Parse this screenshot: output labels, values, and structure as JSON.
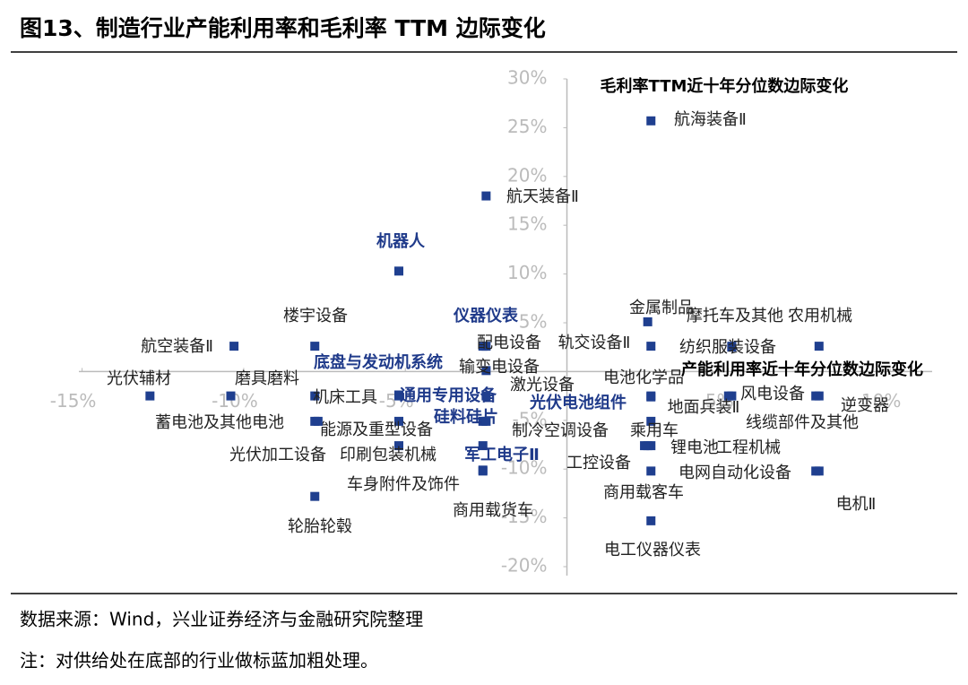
{
  "title": "图13、制造行业产能利用率和毛利率 TTM 边际变化",
  "chart_data": {
    "type": "scatter",
    "x_label": "产能利用率近十年分位数边际变化",
    "y_label": "毛利率TTM近十年分位数边际变化",
    "color": "#1f3f8f",
    "highlight_color": "#1f3a8a",
    "xlim": [
      -15.1,
      11.3
    ],
    "ylim": [
      -20,
      30
    ],
    "xticks": [
      {
        "value": -15,
        "label": "-15%"
      },
      {
        "value": -10,
        "label": "-10%"
      },
      {
        "value": -5,
        "label": "-5%"
      },
      {
        "value": 5,
        "label": "5%"
      },
      {
        "value": 10,
        "label": "10%"
      }
    ],
    "yticks": [
      {
        "value": 30,
        "label": "30%"
      },
      {
        "value": 25,
        "label": "25%"
      },
      {
        "value": 20,
        "label": "20%"
      },
      {
        "value": 15,
        "label": "15%"
      },
      {
        "value": 10,
        "label": "10%"
      },
      {
        "value": 5,
        "label": "5%"
      },
      {
        "value": -5,
        "label": "-5%"
      },
      {
        "value": -10,
        "label": "-10%"
      },
      {
        "value": -15,
        "label": "-15%"
      },
      {
        "value": -20,
        "label": "-20%"
      }
    ],
    "points": [
      {
        "label": "航海装备Ⅱ",
        "x": 2.6,
        "y": 25.7
      },
      {
        "label": "航天装备Ⅱ",
        "x": -2.5,
        "y": 18.0
      },
      {
        "label": "机器人",
        "x": -5.2,
        "y": 10.3,
        "bold": true
      },
      {
        "label": "金属制品",
        "x": 2.5,
        "y": 5.1
      },
      {
        "label": "楼宇设备",
        "x": -7.8,
        "y": 2.6
      },
      {
        "label": "航空装备Ⅱ",
        "x": -10.3,
        "y": 2.6
      },
      {
        "label": "仪器仪表",
        "x": -2.6,
        "y": 2.6,
        "bold": true
      },
      {
        "label": "配电设备",
        "x": -2.5,
        "y": 2.6
      },
      {
        "label": "轨交设备Ⅱ",
        "x": 2.6,
        "y": 2.6
      },
      {
        "label": "摩托车及其他",
        "x": 5.1,
        "y": 2.6
      },
      {
        "label": "农用机械",
        "x": 7.8,
        "y": 2.6
      },
      {
        "label": "纺织服装设备",
        "x": 5.1,
        "y": 2.5
      },
      {
        "label": "光伏辅材",
        "x": -12.9,
        "y": -2.5
      },
      {
        "label": "磨具磨料",
        "x": -10.4,
        "y": -2.5
      },
      {
        "label": "底盘与发动机系统",
        "x": -5.2,
        "y": -2.4,
        "bold": true
      },
      {
        "label": "输变电设备",
        "x": -2.5,
        "y": 0.1
      },
      {
        "label": "机床工具",
        "x": -7.8,
        "y": -2.5
      },
      {
        "label": "通用专用设备",
        "x": -5.2,
        "y": -2.5,
        "bold": true
      },
      {
        "label": "激光设备",
        "x": -2.5,
        "y": -2.5
      },
      {
        "label": "光伏电池组件",
        "x": 2.6,
        "y": -2.6,
        "bold": true
      },
      {
        "label": "电池化学品",
        "x": 2.6,
        "y": -2.5
      },
      {
        "label": "风电设备",
        "x": 5.1,
        "y": -2.5
      },
      {
        "label": "逆变器",
        "x": 7.8,
        "y": -2.5
      },
      {
        "label": "地面兵装Ⅱ",
        "x": 5.0,
        "y": -2.5
      },
      {
        "label": "蓄电池及其他电池",
        "x": -7.8,
        "y": -5.1
      },
      {
        "label": "能源及重型设备",
        "x": -5.2,
        "y": -5.1
      },
      {
        "label": "硅料硅片",
        "x": -2.6,
        "y": -5.1,
        "bold": true
      },
      {
        "label": "制冷空调设备",
        "x": -2.5,
        "y": -5.1
      },
      {
        "label": "乘用车",
        "x": 2.6,
        "y": -5.1
      },
      {
        "label": "线缆部件及其他",
        "x": 7.7,
        "y": -2.5
      },
      {
        "label": "光伏加工设备",
        "x": -7.7,
        "y": -5.1
      },
      {
        "label": "印刷包装机械",
        "x": -5.2,
        "y": -7.6
      },
      {
        "label": "军工电子Ⅱ",
        "x": -2.6,
        "y": -7.6,
        "bold": true
      },
      {
        "label": "锂电池",
        "x": 2.6,
        "y": -7.6
      },
      {
        "label": "工程机械",
        "x": 2.5,
        "y": -7.6
      },
      {
        "label": "工控设备",
        "x": 2.4,
        "y": -7.6
      },
      {
        "label": "电网自动化设备",
        "x": 7.8,
        "y": -10.2
      },
      {
        "label": "电机Ⅱ",
        "x": 7.7,
        "y": -10.2
      },
      {
        "label": "车身附件及饰件",
        "x": -2.6,
        "y": -10.1
      },
      {
        "label": "商用载货车",
        "x": -2.6,
        "y": -10.2
      },
      {
        "label": "商用载客车",
        "x": 2.6,
        "y": -10.2
      },
      {
        "label": "轮胎轮毂",
        "x": -7.8,
        "y": -12.8
      },
      {
        "label": "电工仪器仪表",
        "x": 2.6,
        "y": -15.3
      }
    ]
  },
  "footer": {
    "source": "数据来源：Wind，兴业证券经济与金融研究院整理",
    "note": "注：对供给处在底部的行业做标蓝加粗处理。"
  }
}
